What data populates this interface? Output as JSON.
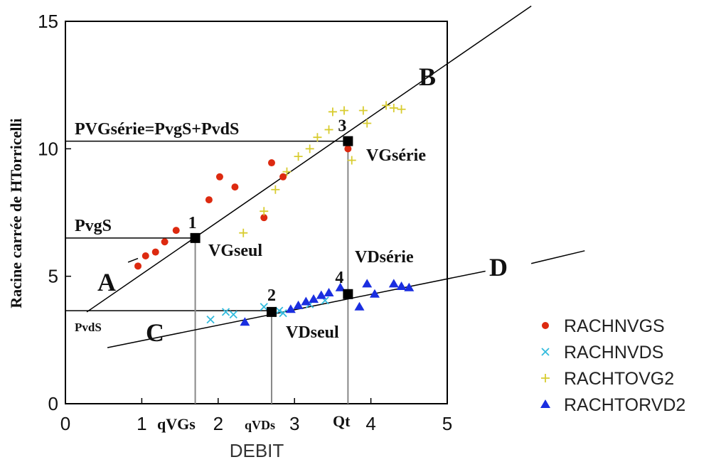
{
  "chart_data": {
    "type": "scatter",
    "xlabel": "DEBIT",
    "ylabel": "Racine carrée de HTorricelli",
    "xlim": [
      0,
      5
    ],
    "ylim": [
      0,
      15
    ],
    "xticks": [
      "0",
      "1",
      "2",
      "3",
      "4",
      "5"
    ],
    "yticks": [
      "0",
      "5",
      "10",
      "15"
    ],
    "legend_position": "bottom-right",
    "series": [
      {
        "name": "RACHNVGS",
        "marker": "circle",
        "color": "#dd2a10",
        "points": [
          [
            0.95,
            5.4
          ],
          [
            1.05,
            5.8
          ],
          [
            1.18,
            5.95
          ],
          [
            1.3,
            6.35
          ],
          [
            1.45,
            6.8
          ],
          [
            1.88,
            8.0
          ],
          [
            2.02,
            8.9
          ],
          [
            2.22,
            8.5
          ],
          [
            2.6,
            7.3
          ],
          [
            2.7,
            9.45
          ],
          [
            2.85,
            8.9
          ],
          [
            3.7,
            10.0
          ]
        ]
      },
      {
        "name": "RACHNVDS",
        "marker": "x",
        "color": "#33bbdd",
        "points": [
          [
            1.9,
            3.3
          ],
          [
            2.1,
            3.6
          ],
          [
            2.2,
            3.5
          ],
          [
            2.6,
            3.8
          ],
          [
            2.8,
            3.65
          ],
          [
            2.85,
            3.55
          ],
          [
            3.2,
            3.9
          ],
          [
            3.4,
            4.05
          ]
        ]
      },
      {
        "name": "RACHTOVG2",
        "marker": "plus",
        "color": "#d8cc30",
        "points": [
          [
            2.33,
            6.7
          ],
          [
            2.6,
            7.55
          ],
          [
            2.75,
            8.4
          ],
          [
            2.9,
            9.1
          ],
          [
            3.05,
            9.7
          ],
          [
            3.2,
            10.0
          ],
          [
            3.3,
            10.45
          ],
          [
            3.45,
            10.75
          ],
          [
            3.5,
            11.45
          ],
          [
            3.65,
            11.5
          ],
          [
            3.75,
            9.55
          ],
          [
            3.9,
            11.5
          ],
          [
            3.95,
            11.0
          ],
          [
            4.2,
            11.7
          ],
          [
            4.3,
            11.6
          ],
          [
            4.4,
            11.55
          ]
        ]
      },
      {
        "name": "RACHTORVD2",
        "marker": "triangle",
        "color": "#1a2ee0",
        "points": [
          [
            2.35,
            3.2
          ],
          [
            2.95,
            3.7
          ],
          [
            3.05,
            3.85
          ],
          [
            3.15,
            4.0
          ],
          [
            3.25,
            4.1
          ],
          [
            3.35,
            4.25
          ],
          [
            3.45,
            4.35
          ],
          [
            3.6,
            4.55
          ],
          [
            3.7,
            4.25
          ],
          [
            3.85,
            3.8
          ],
          [
            3.95,
            4.7
          ],
          [
            4.05,
            4.3
          ],
          [
            4.3,
            4.7
          ],
          [
            4.4,
            4.6
          ],
          [
            4.5,
            4.55
          ]
        ]
      }
    ],
    "lines": [
      {
        "name": "line-ab",
        "x1": 0.28,
        "y1": 3.6,
        "x2": 6.1,
        "y2": 15.6
      },
      {
        "name": "line-ab-tail",
        "x1": 0.82,
        "y1": 5.55,
        "x2": 0.95,
        "y2": 5.7
      },
      {
        "name": "line-cd",
        "x1": 0.55,
        "y1": 2.2,
        "x2": 5.5,
        "y2": 5.2
      },
      {
        "name": "line-d-extra",
        "x1": 6.1,
        "y1": 5.5,
        "x2": 6.8,
        "y2": 6.0
      }
    ],
    "reference_lines": [
      {
        "name": "pvgserie-line",
        "y": 10.3,
        "x_start": 0.0,
        "x_end": 3.7
      },
      {
        "name": "pvgs-line",
        "y": 6.5,
        "x_start": 0.0,
        "x_end": 1.7
      },
      {
        "name": "pvds-line",
        "y": 3.65,
        "x_start": 0.0,
        "x_end": 2.7
      },
      {
        "name": "qvgs-drop",
        "x": 1.7,
        "y_start": 0.0,
        "y_end": 6.5
      },
      {
        "name": "qvds-drop",
        "x": 2.7,
        "y_start": 0.0,
        "y_end": 3.65
      },
      {
        "name": "qt-drop",
        "x": 3.7,
        "y_start": 0.0,
        "y_end": 10.3
      }
    ],
    "key_points": [
      {
        "name": "point-1",
        "label": "1",
        "x": 1.7,
        "y": 6.5
      },
      {
        "name": "point-2",
        "label": "2",
        "x": 2.7,
        "y": 3.6
      },
      {
        "name": "point-3",
        "label": "3",
        "x": 3.7,
        "y": 10.3
      },
      {
        "name": "point-4",
        "label": "4",
        "x": 3.7,
        "y": 4.3
      }
    ],
    "annotations": {
      "pvgserie": "PVGsérie=PvgS+PvdS",
      "pvgs": "PvgS",
      "pvds": "PvdS",
      "vgseul": "VGseul",
      "vgserie": "VGsérie",
      "vdserie": "VDsérie",
      "vdseul": "VDseul",
      "qvgs": "qVGs",
      "qvds": "qVDs",
      "qt": "Qt",
      "A": "A",
      "B": "B",
      "C": "C",
      "D": "D"
    }
  }
}
